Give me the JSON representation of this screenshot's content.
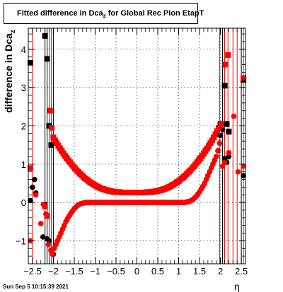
{
  "header": {
    "title_main": "Fitted difference in Dca",
    "title_sub": "z",
    "title_rest": " for Global Rec Pion EtapT"
  },
  "footer": {
    "date": "Sun Sep  5 10:15:39 2021"
  },
  "colors": {
    "series1": "#000000",
    "series2": "#ff0000",
    "grid": "#000000"
  },
  "chart_data": {
    "type": "scatter",
    "title": "Fitted difference in Dca_z for Global Rec Pion EtapT",
    "xlabel": "η",
    "ylabel_main": "difference in Dca",
    "ylabel_sub": "z",
    "xlim": [
      -2.6,
      2.6
    ],
    "ylim": [
      -1.6,
      4.55
    ],
    "x_ticks": [
      -2.5,
      -2,
      -1.5,
      -1,
      -0.5,
      0,
      0.5,
      1,
      1.5,
      2,
      2.5
    ],
    "x_tick_labels": [
      "−2.5",
      "−2",
      "−1.5",
      "−1",
      "−0.5",
      "0",
      "0.5",
      "1",
      "1.5",
      "2",
      "2.5"
    ],
    "y_ticks": [
      -1,
      0,
      1,
      2,
      3,
      4
    ],
    "y_tick_labels": [
      "−1",
      "0",
      "1",
      "2",
      "3",
      "4"
    ],
    "grid": true,
    "series": [
      {
        "color": "#000000",
        "marker": "square",
        "x": [
          -2.55,
          -2.2,
          -2.15,
          -2.1,
          -2.05,
          -2.0,
          -1.96,
          -1.92,
          -1.88,
          -1.84,
          -1.8,
          -1.76,
          -1.72,
          -1.68,
          -1.64,
          -1.6,
          -1.56,
          -1.52,
          -1.48,
          -1.44,
          -1.4,
          -1.36,
          -1.32,
          -1.28,
          -1.24,
          -1.2,
          -1.16,
          -1.12,
          -1.08,
          -1.04,
          -1.0,
          -0.96,
          -0.92,
          -0.88,
          -0.84,
          -0.8,
          -0.76,
          -0.72,
          -0.68,
          -0.64,
          -0.6,
          -0.56,
          -0.52,
          -0.48,
          -0.44,
          -0.4,
          -0.36,
          -0.32,
          -0.28,
          -0.24,
          -0.2,
          -0.16,
          -0.12,
          -0.08,
          -0.04,
          0.0,
          0.04,
          0.08,
          0.12,
          0.16,
          0.2,
          0.24,
          0.28,
          0.32,
          0.36,
          0.4,
          0.44,
          0.48,
          0.52,
          0.56,
          0.6,
          0.64,
          0.68,
          0.72,
          0.76,
          0.8,
          0.84,
          0.88,
          0.92,
          0.96,
          1.0,
          1.04,
          1.08,
          1.12,
          1.16,
          1.2,
          1.24,
          1.28,
          1.32,
          1.36,
          1.4,
          1.44,
          1.48,
          1.52,
          1.56,
          1.6,
          1.64,
          1.68,
          1.72,
          1.76,
          1.8,
          1.84,
          1.88,
          1.92,
          1.96,
          2.0,
          2.1,
          2.15,
          2.2,
          2.55
        ],
        "y": [
          3.65,
          4.35,
          3.75,
          2.0,
          1.5,
          1.7,
          1.62,
          1.55,
          1.48,
          1.41,
          1.35,
          1.28,
          1.22,
          1.16,
          1.1,
          1.05,
          0.99,
          0.94,
          0.89,
          0.84,
          0.8,
          0.75,
          0.71,
          0.67,
          0.63,
          0.6,
          0.56,
          0.53,
          0.5,
          0.47,
          0.45,
          0.42,
          0.4,
          0.38,
          0.36,
          0.35,
          0.33,
          0.32,
          0.31,
          0.3,
          0.29,
          0.28,
          0.28,
          0.27,
          0.27,
          0.27,
          0.26,
          0.26,
          0.26,
          0.26,
          0.26,
          0.26,
          0.26,
          0.26,
          0.26,
          0.26,
          0.26,
          0.26,
          0.26,
          0.26,
          0.26,
          0.27,
          0.27,
          0.27,
          0.28,
          0.28,
          0.29,
          0.3,
          0.31,
          0.32,
          0.33,
          0.35,
          0.36,
          0.38,
          0.4,
          0.42,
          0.45,
          0.47,
          0.5,
          0.53,
          0.56,
          0.6,
          0.63,
          0.67,
          0.71,
          0.75,
          0.8,
          0.84,
          0.89,
          0.94,
          0.99,
          1.05,
          1.1,
          1.16,
          1.22,
          1.28,
          1.35,
          1.41,
          1.48,
          1.55,
          1.62,
          1.7,
          1.78,
          1.86,
          1.95,
          2.05,
          3.05,
          2.05,
          1.85,
          3.2
        ]
      },
      {
        "color": "#000000",
        "marker": "circle",
        "x": [
          -2.55,
          -2.5,
          -2.45,
          -2.42,
          -2.25,
          -2.2,
          -2.15,
          -2.1,
          -2.05,
          -2.0,
          -1.98,
          -1.94,
          -1.9,
          -1.86,
          -1.82,
          -1.78,
          -1.74,
          -1.7,
          -1.66,
          -1.62,
          -1.58,
          -1.54,
          -1.5,
          -1.46,
          -1.42,
          -1.38,
          -1.34,
          -1.3,
          -1.26,
          -1.22,
          -1.18,
          -1.14,
          -1.1,
          -1.06,
          -1.02,
          -0.98,
          -0.94,
          -0.9,
          -0.86,
          -0.82,
          -0.78,
          -0.74,
          -0.7,
          -0.66,
          -0.62,
          -0.58,
          -0.54,
          -0.5,
          -0.46,
          -0.42,
          -0.38,
          -0.34,
          -0.3,
          -0.26,
          -0.22,
          -0.18,
          -0.14,
          -0.1,
          -0.06,
          -0.02,
          0.02,
          0.06,
          0.1,
          0.14,
          0.18,
          0.22,
          0.26,
          0.3,
          0.34,
          0.38,
          0.42,
          0.46,
          0.5,
          0.54,
          0.58,
          0.62,
          0.66,
          0.7,
          0.74,
          0.78,
          0.82,
          0.86,
          0.9,
          0.94,
          0.98,
          1.02,
          1.06,
          1.1,
          1.14,
          1.18,
          1.22,
          1.26,
          1.3,
          1.34,
          1.38,
          1.42,
          1.46,
          1.5,
          1.54,
          1.58,
          1.62,
          1.66,
          1.7,
          1.74,
          1.78,
          1.82,
          1.86,
          1.9,
          1.94,
          1.98,
          2.0,
          2.05,
          2.1,
          2.15,
          2.2,
          2.55
        ],
        "y": [
          0.05,
          0.4,
          0.6,
          0.25,
          -0.9,
          -0.05,
          -0.95,
          -1.0,
          -1.25,
          -1.35,
          -1.2,
          -1.1,
          -1.0,
          -0.9,
          -0.8,
          -0.7,
          -0.6,
          -0.5,
          -0.42,
          -0.35,
          -0.28,
          -0.22,
          -0.16,
          -0.12,
          -0.08,
          -0.05,
          -0.03,
          -0.02,
          -0.01,
          0.0,
          0.0,
          0.0,
          0.0,
          0.0,
          0.0,
          0.0,
          0.0,
          0.0,
          0.0,
          0.0,
          0.0,
          0.0,
          0.0,
          0.0,
          0.0,
          0.0,
          0.0,
          0.0,
          0.0,
          0.0,
          0.0,
          0.0,
          0.0,
          0.0,
          0.0,
          0.0,
          0.0,
          0.0,
          0.0,
          0.0,
          0.0,
          0.0,
          0.0,
          0.0,
          0.0,
          0.0,
          0.0,
          0.0,
          0.0,
          0.0,
          0.0,
          0.0,
          0.0,
          0.0,
          0.0,
          0.0,
          0.0,
          0.0,
          0.0,
          0.0,
          0.0,
          0.0,
          0.0,
          0.0,
          0.0,
          0.0,
          0.0,
          0.0,
          0.0,
          0.01,
          0.02,
          0.03,
          0.05,
          0.08,
          0.12,
          0.16,
          0.22,
          0.28,
          0.35,
          0.42,
          0.5,
          0.6,
          0.7,
          0.8,
          0.9,
          1.0,
          1.1,
          1.2,
          1.35,
          1.55,
          1.75,
          1.9,
          1.15,
          1.05,
          1.2,
          0.7
        ]
      },
      {
        "color": "#ff0000",
        "marker": "square",
        "x": [
          -2.55,
          -2.2,
          -2.15,
          -2.08,
          -2.04,
          -2.0,
          -1.96,
          -1.92,
          -1.88,
          -1.84,
          -1.8,
          -1.76,
          -1.72,
          -1.68,
          -1.64,
          -1.6,
          -1.56,
          -1.52,
          -1.48,
          -1.44,
          -1.4,
          -1.36,
          -1.32,
          -1.28,
          -1.24,
          -1.2,
          -1.16,
          -1.12,
          -1.08,
          -1.04,
          -1.0,
          -0.96,
          -0.92,
          -0.88,
          -0.84,
          -0.8,
          -0.76,
          -0.72,
          -0.68,
          -0.64,
          -0.6,
          -0.56,
          -0.52,
          -0.48,
          -0.44,
          -0.4,
          -0.36,
          -0.32,
          -0.28,
          -0.24,
          -0.2,
          -0.16,
          -0.12,
          -0.08,
          -0.04,
          0.0,
          0.04,
          0.08,
          0.12,
          0.16,
          0.2,
          0.24,
          0.28,
          0.32,
          0.36,
          0.4,
          0.44,
          0.48,
          0.52,
          0.56,
          0.6,
          0.64,
          0.68,
          0.72,
          0.76,
          0.8,
          0.84,
          0.88,
          0.92,
          0.96,
          1.0,
          1.04,
          1.08,
          1.12,
          1.16,
          1.2,
          1.24,
          1.28,
          1.32,
          1.36,
          1.4,
          1.44,
          1.48,
          1.52,
          1.56,
          1.6,
          1.64,
          1.68,
          1.72,
          1.76,
          1.8,
          1.84,
          1.88,
          1.92,
          1.96,
          2.02,
          2.12,
          2.18,
          2.55
        ],
        "y": [
          0.9,
          -0.1,
          -0.35,
          2.4,
          1.95,
          1.7,
          1.62,
          1.55,
          1.48,
          1.41,
          1.35,
          1.28,
          1.22,
          1.16,
          1.1,
          1.05,
          0.99,
          0.94,
          0.89,
          0.84,
          0.8,
          0.75,
          0.71,
          0.67,
          0.63,
          0.6,
          0.56,
          0.53,
          0.5,
          0.47,
          0.45,
          0.42,
          0.4,
          0.38,
          0.36,
          0.35,
          0.33,
          0.32,
          0.31,
          0.3,
          0.29,
          0.28,
          0.28,
          0.27,
          0.27,
          0.27,
          0.26,
          0.26,
          0.26,
          0.26,
          0.26,
          0.26,
          0.26,
          0.26,
          0.26,
          0.26,
          0.26,
          0.26,
          0.26,
          0.26,
          0.26,
          0.27,
          0.27,
          0.27,
          0.28,
          0.28,
          0.29,
          0.3,
          0.31,
          0.32,
          0.33,
          0.35,
          0.36,
          0.38,
          0.4,
          0.42,
          0.45,
          0.47,
          0.5,
          0.53,
          0.56,
          0.6,
          0.63,
          0.67,
          0.71,
          0.75,
          0.8,
          0.84,
          0.89,
          0.94,
          0.99,
          1.05,
          1.1,
          1.16,
          1.22,
          1.28,
          1.35,
          1.41,
          1.48,
          1.55,
          1.62,
          1.7,
          1.78,
          1.86,
          1.95,
          2.05,
          3.6,
          3.85,
          3.25
        ]
      },
      {
        "color": "#ff0000",
        "marker": "circle",
        "x": [
          -2.55,
          -2.42,
          -2.3,
          -2.24,
          -2.18,
          -2.12,
          -2.06,
          -2.02,
          -1.98,
          -1.94,
          -1.9,
          -1.86,
          -1.82,
          -1.78,
          -1.74,
          -1.7,
          -1.66,
          -1.62,
          -1.58,
          -1.54,
          -1.5,
          -1.46,
          -1.42,
          -1.38,
          -1.34,
          -1.3,
          -1.26,
          -1.22,
          -1.18,
          -1.14,
          -1.1,
          -1.06,
          -1.02,
          -0.98,
          -0.94,
          -0.9,
          -0.86,
          -0.82,
          -0.78,
          -0.74,
          -0.7,
          -0.66,
          -0.62,
          -0.58,
          -0.54,
          -0.5,
          -0.46,
          -0.42,
          -0.38,
          -0.34,
          -0.3,
          -0.26,
          -0.22,
          -0.18,
          -0.14,
          -0.1,
          -0.06,
          -0.02,
          0.02,
          0.06,
          0.1,
          0.14,
          0.18,
          0.22,
          0.26,
          0.3,
          0.34,
          0.38,
          0.42,
          0.46,
          0.5,
          0.54,
          0.58,
          0.62,
          0.66,
          0.7,
          0.74,
          0.78,
          0.82,
          0.86,
          0.9,
          0.94,
          0.98,
          1.02,
          1.06,
          1.1,
          1.14,
          1.18,
          1.22,
          1.26,
          1.3,
          1.34,
          1.38,
          1.42,
          1.46,
          1.5,
          1.54,
          1.58,
          1.62,
          1.66,
          1.7,
          1.74,
          1.78,
          1.82,
          1.86,
          1.9,
          1.94,
          1.98,
          2.05,
          2.1,
          2.2,
          2.32,
          2.42,
          2.55
        ],
        "y": [
          -1.0,
          0.2,
          -0.55,
          -0.05,
          -0.3,
          -1.1,
          -1.25,
          -1.35,
          -1.2,
          -1.1,
          -1.0,
          -0.9,
          -0.8,
          -0.7,
          -0.6,
          -0.5,
          -0.42,
          -0.35,
          -0.28,
          -0.22,
          -0.16,
          -0.12,
          -0.08,
          -0.05,
          -0.03,
          -0.02,
          -0.01,
          0.0,
          0.0,
          0.0,
          0.0,
          0.0,
          0.0,
          0.0,
          0.0,
          0.0,
          0.0,
          0.0,
          0.0,
          0.0,
          0.0,
          0.0,
          0.0,
          0.0,
          0.0,
          0.0,
          0.0,
          0.0,
          0.0,
          0.0,
          0.0,
          0.0,
          0.0,
          0.0,
          0.0,
          0.0,
          0.0,
          0.0,
          0.0,
          0.0,
          0.0,
          0.0,
          0.0,
          0.0,
          0.0,
          0.0,
          0.0,
          0.0,
          0.0,
          0.0,
          0.0,
          0.0,
          0.0,
          0.0,
          0.0,
          0.0,
          0.0,
          0.0,
          0.0,
          0.0,
          0.0,
          0.0,
          0.0,
          0.0,
          0.0,
          0.0,
          0.0,
          0.01,
          0.02,
          0.03,
          0.05,
          0.08,
          0.12,
          0.16,
          0.22,
          0.28,
          0.35,
          0.42,
          0.5,
          0.6,
          0.7,
          0.8,
          0.9,
          1.0,
          1.1,
          1.2,
          1.35,
          1.55,
          0.95,
          1.05,
          1.3,
          2.25,
          0.8,
          0.95
        ]
      }
    ],
    "vertical_lines": [
      {
        "x": -2.6,
        "color": "#ff0000"
      },
      {
        "x": -2.5,
        "color": "#ff0000"
      },
      {
        "x": -2.2,
        "color": "#000000"
      },
      {
        "x": -2.15,
        "color": "#000000"
      },
      {
        "x": -2.1,
        "color": "#ff0000"
      },
      {
        "x": -2.05,
        "color": "#ff0000"
      },
      {
        "x": -2.0,
        "color": "#000000"
      },
      {
        "x": 1.98,
        "color": "#ff0000"
      },
      {
        "x": 2.05,
        "color": "#000000"
      },
      {
        "x": 2.1,
        "color": "#ff0000"
      },
      {
        "x": 2.18,
        "color": "#ff0000"
      },
      {
        "x": 2.3,
        "color": "#ff0000"
      },
      {
        "x": 2.4,
        "color": "#ff0000"
      },
      {
        "x": 2.5,
        "color": "#000000"
      },
      {
        "x": 2.55,
        "color": "#ff0000"
      }
    ]
  }
}
